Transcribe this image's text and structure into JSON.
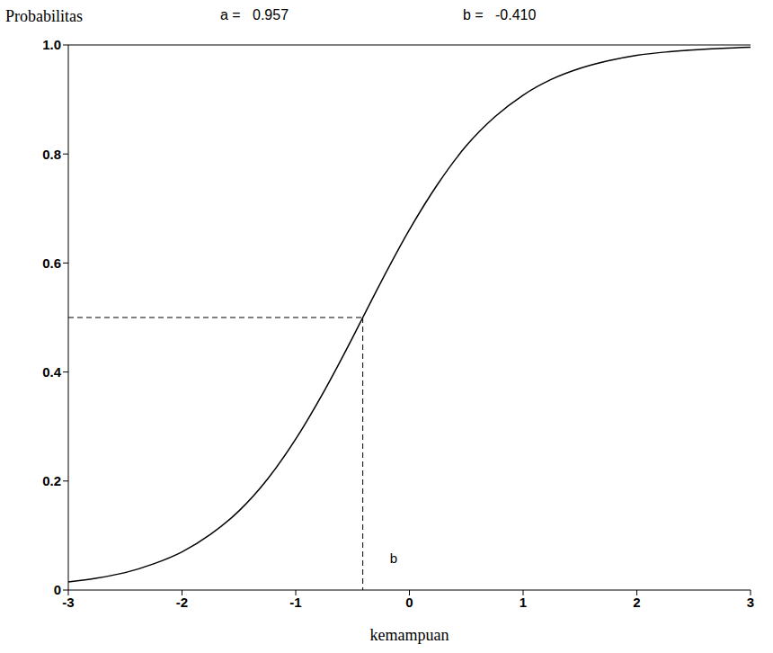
{
  "chart_data": {
    "type": "line",
    "y_label": "Probabilitas",
    "x_label": "kemampuan",
    "parameters": [
      {
        "name": "a =",
        "value": 0.957,
        "label": "0.957"
      },
      {
        "name": "b =",
        "value": -0.41,
        "label": "-0.410"
      }
    ],
    "reference": {
      "x": -0.41,
      "y": 0.5,
      "label": "b"
    },
    "x": [
      -3,
      -2.75,
      -2.5,
      -2.25,
      -2,
      -1.75,
      -1.5,
      -1.25,
      -1,
      -0.75,
      -0.5,
      -0.41,
      -0.25,
      0,
      0.25,
      0.5,
      0.75,
      1,
      1.25,
      1.5,
      1.75,
      2,
      2.25,
      2.5,
      2.75,
      3
    ],
    "values": [
      0.015,
      0.022,
      0.032,
      0.048,
      0.07,
      0.102,
      0.145,
      0.203,
      0.277,
      0.365,
      0.463,
      0.5,
      0.565,
      0.661,
      0.745,
      0.815,
      0.868,
      0.908,
      0.937,
      0.957,
      0.971,
      0.981,
      0.987,
      0.991,
      0.994,
      0.996
    ],
    "color": "#000000",
    "line_style": "solid",
    "xlim": [
      -3,
      3
    ],
    "ylim": [
      0,
      1
    ],
    "xticks": [
      -3,
      -2,
      -1,
      0,
      1,
      2,
      3
    ],
    "yticks": [
      0,
      0.2,
      0.4,
      0.6,
      0.8,
      {
        "value": 1,
        "label": "1.0"
      }
    ],
    "grid": false
  }
}
